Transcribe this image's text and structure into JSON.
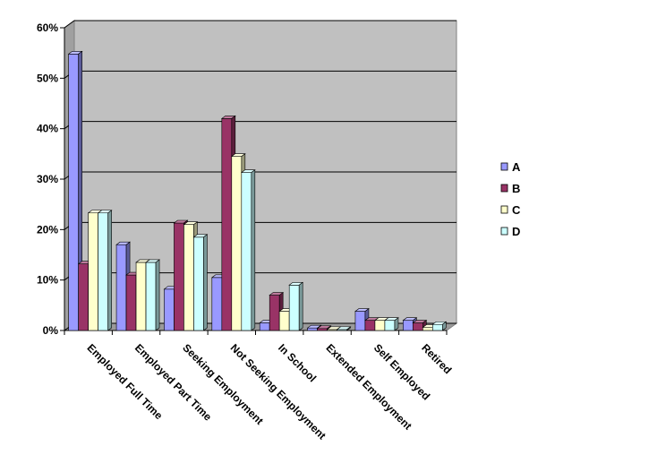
{
  "chart_data": {
    "type": "bar",
    "style": "3d-clustered-column",
    "title": "",
    "xlabel": "",
    "ylabel": "",
    "ylim": [
      0,
      60
    ],
    "yticks": [
      "0%",
      "10%",
      "20%",
      "30%",
      "40%",
      "50%",
      "60%"
    ],
    "y_unit": "%",
    "grid": true,
    "legend_position": "right",
    "plot_background": "#c0c0c0",
    "categories": [
      "Employed Full Time",
      "Employed Part Time",
      "Seeking Employment",
      "Not Seeking Employment",
      "In School",
      "Extended Employment",
      "Self Employed",
      "Retired"
    ],
    "series": [
      {
        "name": "A",
        "color": "#9999ff",
        "values": [
          54.8,
          17.0,
          8.2,
          10.5,
          1.5,
          0.5,
          3.8,
          2.0
        ]
      },
      {
        "name": "B",
        "color": "#993366",
        "values": [
          13.2,
          11.0,
          21.3,
          42.0,
          7.0,
          0.4,
          2.0,
          1.5
        ]
      },
      {
        "name": "C",
        "color": "#ffffcc",
        "values": [
          23.3,
          13.5,
          21.0,
          34.5,
          3.8,
          0.2,
          2.0,
          0.6
        ]
      },
      {
        "name": "D",
        "color": "#ccffff",
        "values": [
          23.3,
          13.5,
          18.5,
          31.3,
          9.0,
          0.2,
          2.0,
          1.2
        ]
      }
    ]
  }
}
